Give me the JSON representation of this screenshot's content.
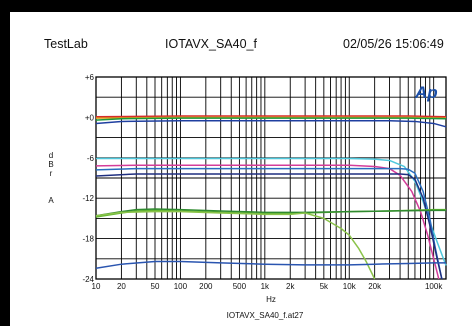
{
  "header": {
    "left": "TestLab",
    "center": "IOTAVX_SA40_f",
    "right": "02/05/26 15:06:49"
  },
  "logo": {
    "text": "Ap",
    "color": "#1b4fa8"
  },
  "chart_data": {
    "type": "line",
    "xlabel": "Hz",
    "ylabel": "d B r A",
    "ylabel_chars": [
      "d",
      "B",
      "r",
      "A"
    ],
    "filename": "IOTAVX_SA40_f.at27",
    "x_scale": "log",
    "xlim": [
      10,
      140000
    ],
    "ylim": [
      -24,
      6
    ],
    "grid": true,
    "x_ticks": [
      {
        "v": 10,
        "label": "10"
      },
      {
        "v": 20,
        "label": "20"
      },
      {
        "v": 50,
        "label": "50"
      },
      {
        "v": 100,
        "label": "100"
      },
      {
        "v": 200,
        "label": "200"
      },
      {
        "v": 500,
        "label": "500"
      },
      {
        "v": 1000,
        "label": "1k"
      },
      {
        "v": 2000,
        "label": "2k"
      },
      {
        "v": 5000,
        "label": "5k"
      },
      {
        "v": 10000,
        "label": "10k"
      },
      {
        "v": 20000,
        "label": "20k"
      },
      {
        "v": 100000,
        "label": "100k"
      }
    ],
    "y_ticks": [
      {
        "v": 6,
        "label": "+6"
      },
      {
        "v": 0,
        "label": "+0"
      },
      {
        "v": -6,
        "label": "-6"
      },
      {
        "v": -12,
        "label": "-12"
      },
      {
        "v": -18,
        "label": "-18"
      },
      {
        "v": -24,
        "label": "-24"
      }
    ],
    "series": [
      {
        "color": "#d62b2b",
        "points": [
          [
            10,
            0.1
          ],
          [
            100,
            0.2
          ],
          [
            1000,
            0.2
          ],
          [
            10000,
            0.2
          ],
          [
            50000,
            0.2
          ],
          [
            140000,
            0.1
          ]
        ]
      },
      {
        "color": "#e6a020",
        "points": [
          [
            10,
            -0.1
          ],
          [
            100,
            0
          ],
          [
            1000,
            0
          ],
          [
            10000,
            0
          ],
          [
            50000,
            0
          ],
          [
            140000,
            -0.1
          ]
        ]
      },
      {
        "color": "#1a9a3a",
        "points": [
          [
            10,
            -0.4
          ],
          [
            20,
            -0.2
          ],
          [
            100,
            -0.1
          ],
          [
            1000,
            -0.1
          ],
          [
            10000,
            -0.1
          ],
          [
            50000,
            -0.1
          ],
          [
            140000,
            -0.2
          ]
        ]
      },
      {
        "color": "#1f3fa0",
        "points": [
          [
            10,
            -0.9
          ],
          [
            20,
            -0.6
          ],
          [
            100,
            -0.5
          ],
          [
            1000,
            -0.5
          ],
          [
            10000,
            -0.5
          ],
          [
            30000,
            -0.5
          ],
          [
            60000,
            -0.6
          ],
          [
            100000,
            -0.9
          ],
          [
            140000,
            -1.4
          ]
        ]
      },
      {
        "color": "#4fc8dc",
        "points": [
          [
            10,
            -6.1
          ],
          [
            30,
            -6.1
          ],
          [
            1000,
            -6.1
          ],
          [
            10000,
            -6.1
          ],
          [
            20000,
            -6.2
          ],
          [
            30000,
            -6.4
          ],
          [
            45000,
            -7.3
          ],
          [
            60000,
            -9.5
          ],
          [
            75000,
            -12.5
          ],
          [
            90000,
            -15.5
          ],
          [
            110000,
            -18.5
          ],
          [
            140000,
            -22
          ]
        ]
      },
      {
        "color": "#d43d9a",
        "points": [
          [
            10,
            -7.2
          ],
          [
            30,
            -7.1
          ],
          [
            1000,
            -7.1
          ],
          [
            10000,
            -7.1
          ],
          [
            20000,
            -7.3
          ],
          [
            30000,
            -7.6
          ],
          [
            40000,
            -8.6
          ],
          [
            55000,
            -11
          ],
          [
            70000,
            -14
          ],
          [
            85000,
            -17.5
          ],
          [
            100000,
            -21
          ],
          [
            115000,
            -24
          ]
        ]
      },
      {
        "color": "#2a6fc0",
        "points": [
          [
            10,
            -7.8
          ],
          [
            30,
            -7.6
          ],
          [
            1000,
            -7.6
          ],
          [
            10000,
            -7.6
          ],
          [
            20000,
            -7.6
          ],
          [
            40000,
            -7.6
          ],
          [
            50000,
            -7.7
          ],
          [
            60000,
            -8.3
          ],
          [
            75000,
            -11
          ],
          [
            90000,
            -15
          ],
          [
            105000,
            -19.5
          ],
          [
            125000,
            -24
          ]
        ]
      },
      {
        "color": "#1f2f80",
        "points": [
          [
            10,
            -8.7
          ],
          [
            30,
            -8.4
          ],
          [
            1000,
            -8.4
          ],
          [
            10000,
            -8.4
          ],
          [
            20000,
            -8.4
          ],
          [
            40000,
            -8.4
          ],
          [
            50000,
            -8.5
          ],
          [
            60000,
            -9.2
          ],
          [
            75000,
            -12
          ],
          [
            90000,
            -16
          ],
          [
            110000,
            -21
          ],
          [
            125000,
            -24
          ]
        ]
      },
      {
        "color": "#66b832",
        "points": [
          [
            10,
            -14.8
          ],
          [
            20,
            -14.2
          ],
          [
            30,
            -13.9
          ],
          [
            50,
            -13.8
          ],
          [
            100,
            -13.9
          ],
          [
            300,
            -14.1
          ],
          [
            1000,
            -14.3
          ],
          [
            3000,
            -14.2
          ],
          [
            10000,
            -14.0
          ],
          [
            30000,
            -13.9
          ],
          [
            100000,
            -13.7
          ],
          [
            140000,
            -13.7
          ]
        ]
      },
      {
        "color": "#2f8a2f",
        "points": [
          [
            10,
            -14.6
          ],
          [
            20,
            -14.0
          ],
          [
            30,
            -13.7
          ],
          [
            50,
            -13.6
          ],
          [
            100,
            -13.7
          ],
          [
            300,
            -13.9
          ],
          [
            1000,
            -14.1
          ],
          [
            3000,
            -14.1
          ],
          [
            10000,
            -14.0
          ],
          [
            30000,
            -13.9
          ],
          [
            100000,
            -13.8
          ],
          [
            140000,
            -13.8
          ]
        ]
      },
      {
        "color": "#8bc34a",
        "points": [
          [
            10,
            -14.6
          ],
          [
            20,
            -14.1
          ],
          [
            50,
            -14.0
          ],
          [
            100,
            -14.0
          ],
          [
            300,
            -14.2
          ],
          [
            1000,
            -14.4
          ],
          [
            2000,
            -14.4
          ],
          [
            3000,
            -14.2
          ],
          [
            5000,
            -15
          ],
          [
            8000,
            -16.5
          ],
          [
            10000,
            -17.5
          ],
          [
            13000,
            -19.5
          ],
          [
            16000,
            -21.5
          ],
          [
            20000,
            -24
          ]
        ]
      },
      {
        "color": "#2a55b0",
        "points": [
          [
            10,
            -22.4
          ],
          [
            20,
            -21.8
          ],
          [
            50,
            -21.4
          ],
          [
            100,
            -21.4
          ],
          [
            300,
            -21.6
          ],
          [
            1000,
            -21.8
          ],
          [
            3000,
            -21.9
          ],
          [
            10000,
            -21.9
          ],
          [
            20000,
            -21.8
          ],
          [
            50000,
            -21.7
          ],
          [
            100000,
            -21.6
          ],
          [
            140000,
            -21.6
          ]
        ]
      }
    ]
  }
}
